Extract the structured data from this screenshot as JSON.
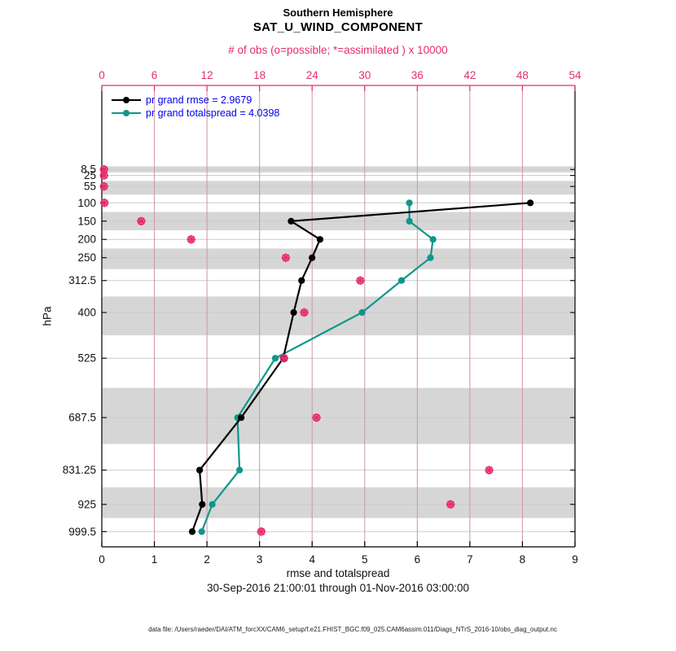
{
  "title": {
    "line1": "Southern Hemisphere",
    "line2": "SAT_U_WIND_COMPONENT"
  },
  "top_axis": {
    "label": "# of obs (o=possible; *=assimilated ) x 10000",
    "ticks": [
      0,
      6,
      12,
      18,
      24,
      30,
      36,
      42,
      48,
      54
    ]
  },
  "bottom_axis": {
    "label": "rmse and totalspread",
    "ticks": [
      0,
      1,
      2,
      3,
      4,
      5,
      6,
      7,
      8,
      9
    ]
  },
  "left_axis": {
    "label": "hPa"
  },
  "legend": {
    "text_color": "#0000EE",
    "items": [
      {
        "label": "pr grand rmse = 2.9679",
        "color": "#000000"
      },
      {
        "label": "pr grand totalspread = 4.0398",
        "color": "#0F968C"
      }
    ]
  },
  "subtitle": "30-Sep-2016 21:00:01 through 01-Nov-2016 03:00:00",
  "footer": "data file: /Users/raeder/DAI/ATM_forcXX/CAM6_setup/f.e21.FHIST_BGC.f09_025.CAM6assim.011/Diags_NTrS_2016-10/obs_diag_output.nc",
  "chart_data": {
    "type": "line",
    "orientation": "vertical-pressure-profile",
    "xlim_bottom": [
      0,
      9
    ],
    "xlim_top": [
      0,
      54
    ],
    "y_levels_hpa": [
      8.5,
      25,
      55,
      100,
      150,
      200,
      250,
      312.5,
      400,
      525,
      687.5,
      831.25,
      925,
      999.5
    ],
    "shaded_levels_hpa": [
      8.5,
      55,
      150,
      250,
      400,
      687.5,
      925
    ],
    "grid": true,
    "legend_position": "top-left-inside",
    "colors": {
      "rmse": "#000000",
      "totalspread": "#0F968C",
      "obs": "#E62E6B",
      "band": "#D6D6D6",
      "h_grid": "#CCCCCC",
      "v_grid": "#CF94AC"
    },
    "series": [
      {
        "name": "pr grand totalspread",
        "axis": "bottom",
        "style": "line",
        "marker": "filled-circle",
        "color_key": "totalspread",
        "levels_hpa": [
          100,
          150,
          200,
          250,
          312.5,
          400,
          525,
          687.5,
          831.25,
          925,
          999.5
        ],
        "values": [
          5.85,
          5.85,
          6.3,
          6.25,
          5.7,
          4.95,
          3.3,
          2.58,
          2.62,
          2.1,
          1.9
        ]
      },
      {
        "name": "pr grand rmse",
        "axis": "bottom",
        "style": "line",
        "marker": "filled-circle",
        "color_key": "rmse",
        "levels_hpa": [
          100,
          150,
          200,
          250,
          312.5,
          400,
          525,
          687.5,
          831.25,
          925,
          999.5
        ],
        "values": [
          8.15,
          3.6,
          4.15,
          4.0,
          3.8,
          3.65,
          3.45,
          2.65,
          1.86,
          1.91,
          1.72
        ]
      },
      {
        "name": "possible obs (x 10000)",
        "axis": "top",
        "style": "markers",
        "marker": "o",
        "color_key": "obs",
        "levels_hpa": [
          8.5,
          25,
          55,
          100,
          150,
          200,
          250,
          312.5,
          400,
          525,
          687.5,
          831.25,
          925,
          999.5
        ],
        "values": [
          0.25,
          0.25,
          0.25,
          0.3,
          4.5,
          10.2,
          21.0,
          29.5,
          23.1,
          20.8,
          24.5,
          44.2,
          39.8,
          18.2
        ]
      },
      {
        "name": "assimilated obs (x 10000)",
        "axis": "top",
        "style": "markers",
        "marker": "*",
        "color_key": "obs",
        "levels_hpa": [
          8.5,
          25,
          55,
          100,
          150,
          200,
          250,
          312.5,
          400,
          525,
          687.5,
          831.25,
          925,
          999.5
        ],
        "values": [
          0.25,
          0.25,
          0.25,
          0.3,
          4.5,
          10.2,
          21.0,
          29.5,
          23.1,
          20.8,
          24.5,
          44.2,
          39.8,
          18.2
        ]
      }
    ]
  }
}
